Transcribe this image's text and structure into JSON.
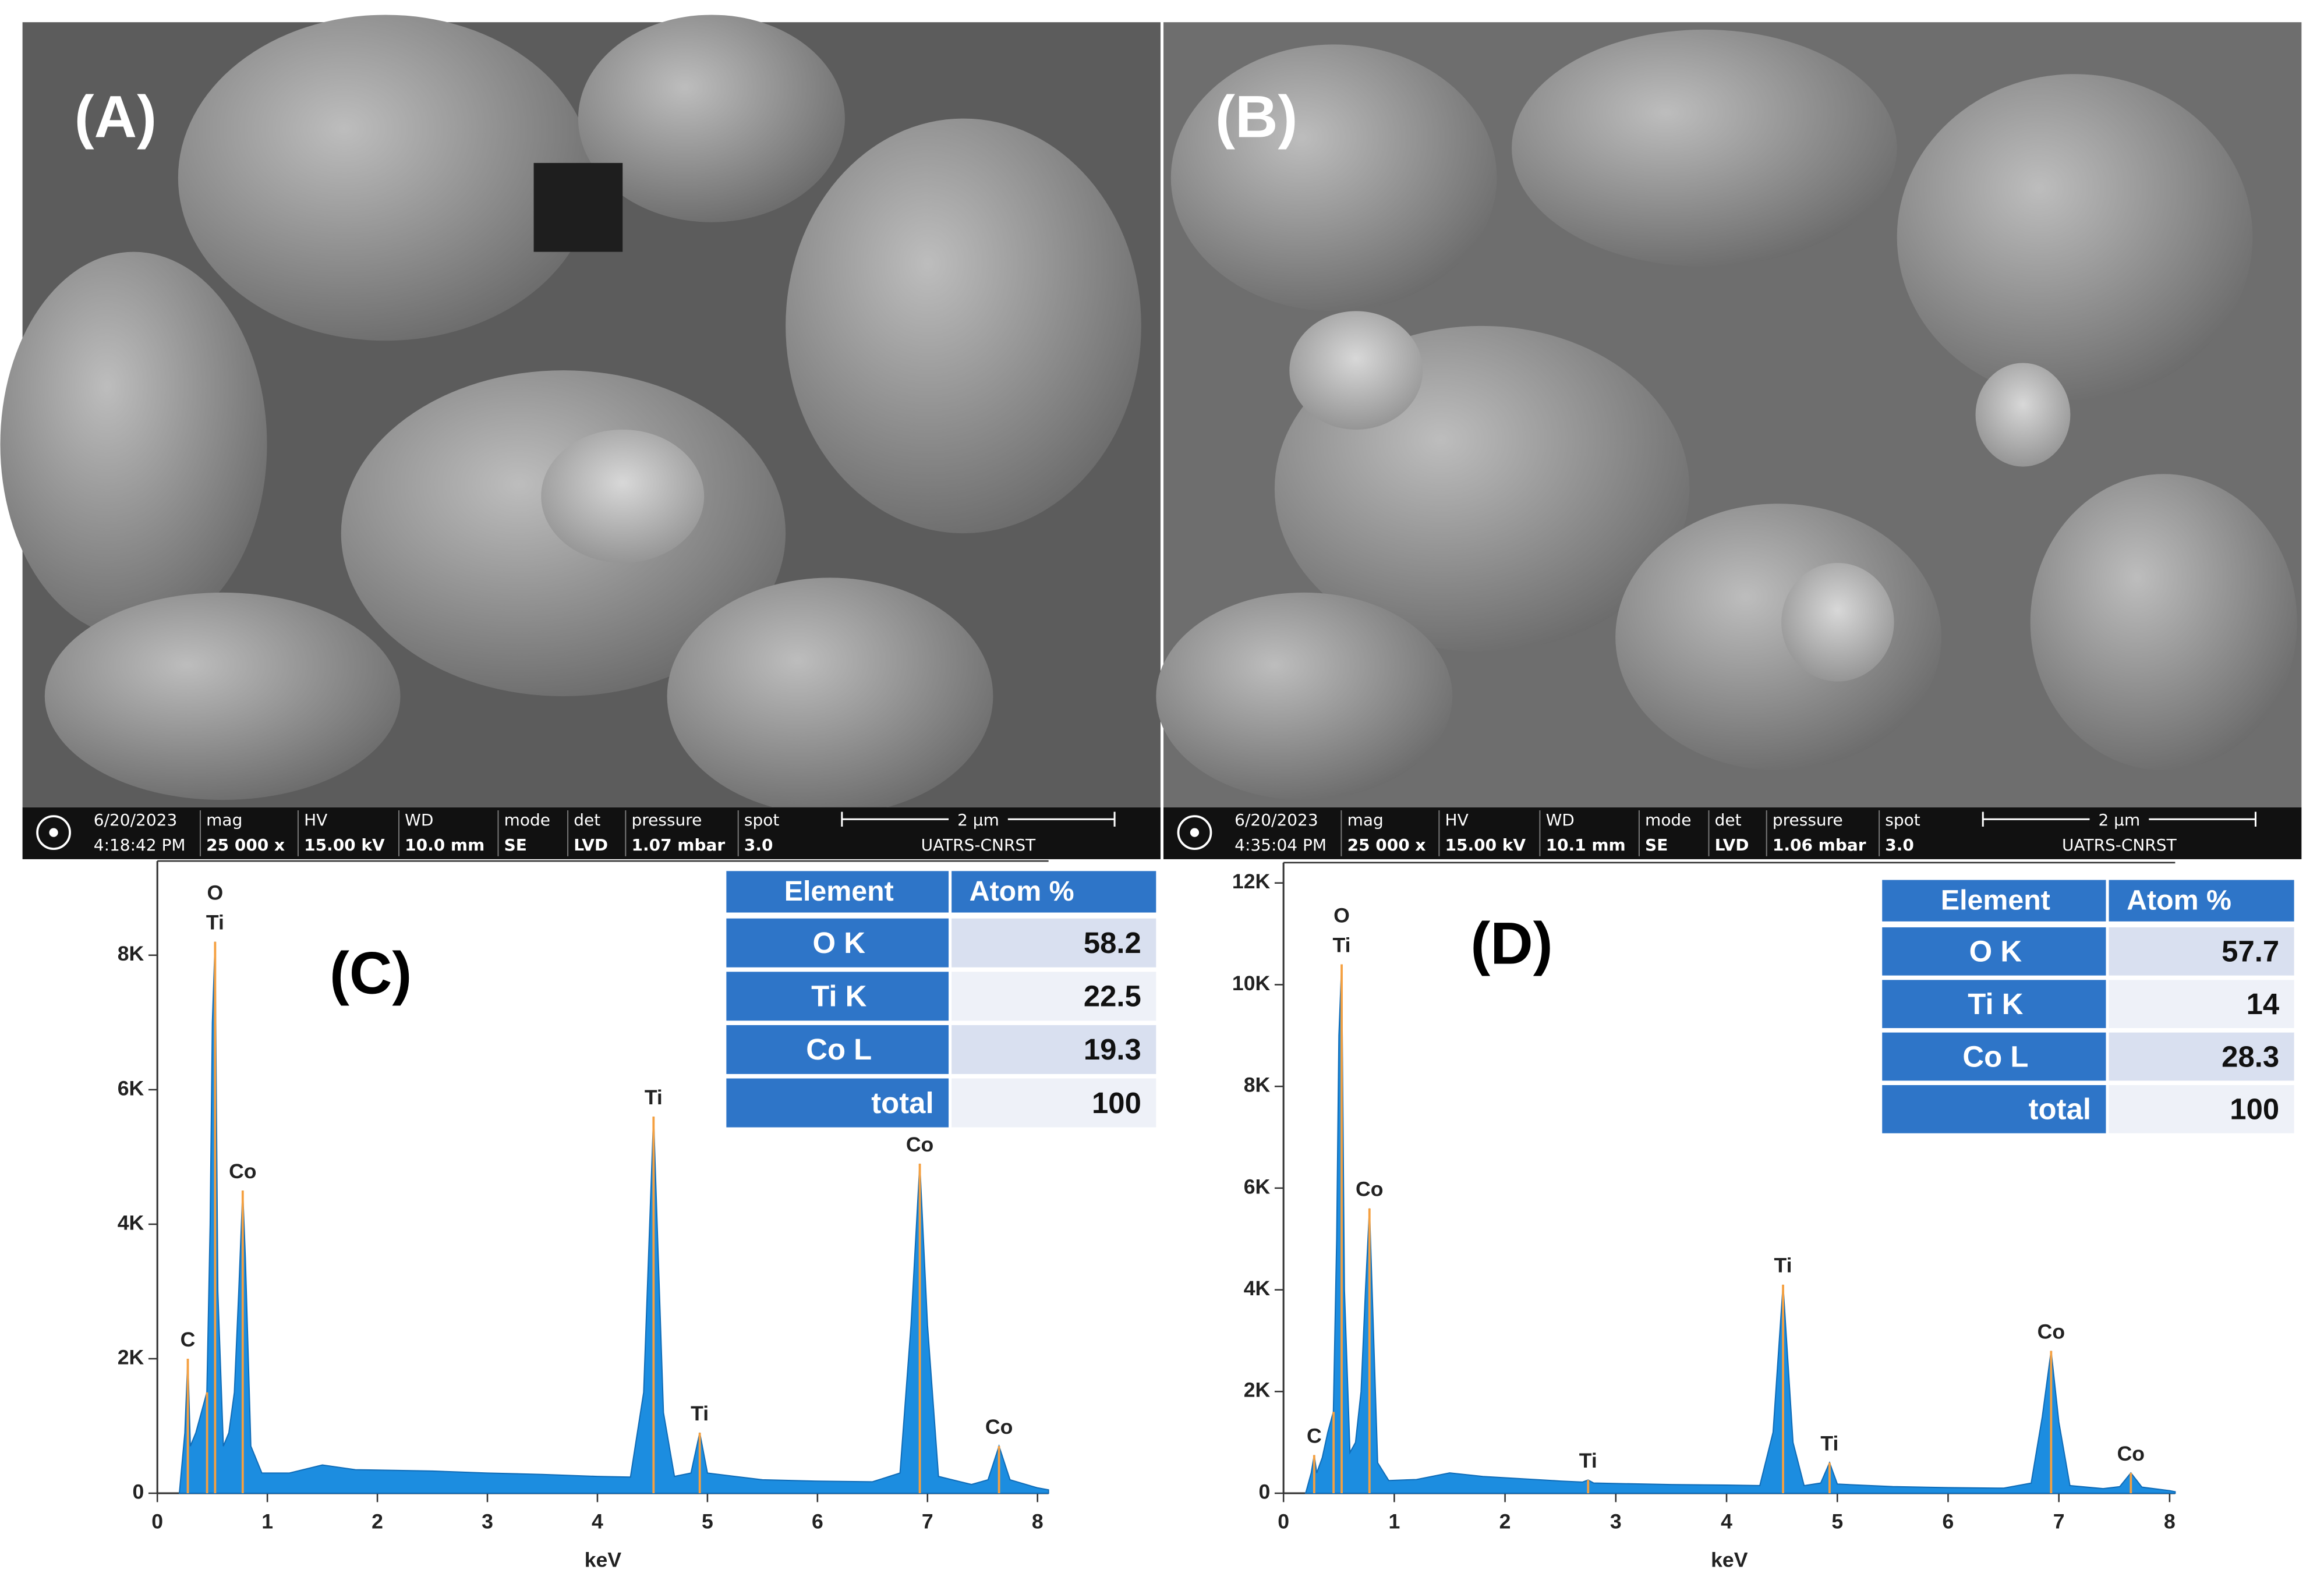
{
  "panels": [
    {
      "label": "(A)",
      "info": [
        [
          "6/20/2023",
          "4:18:42 PM"
        ],
        [
          "mag",
          "25 000 x"
        ],
        [
          "HV",
          "15.00 kV"
        ],
        [
          "WD",
          "10.0 mm"
        ],
        [
          "mode",
          "SE"
        ],
        [
          "det",
          "LVD"
        ],
        [
          "pressure",
          "1.07 mbar"
        ],
        [
          "spot",
          "3.0"
        ]
      ],
      "scale": "2 µm",
      "lab": "UATRS-CNRST"
    },
    {
      "label": "(B)",
      "info": [
        [
          "6/20/2023",
          "4:35:04 PM"
        ],
        [
          "mag",
          "25 000 x"
        ],
        [
          "HV",
          "15.00 kV"
        ],
        [
          "WD",
          "10.1 mm"
        ],
        [
          "mode",
          "SE"
        ],
        [
          "det",
          "LVD"
        ],
        [
          "pressure",
          "1.06 mbar"
        ],
        [
          "spot",
          "3.0"
        ]
      ],
      "scale": "2 µm",
      "lab": "UATRS-CNRST"
    }
  ],
  "chart_data": [
    {
      "type": "area",
      "title": "(C)",
      "xlabel": "keV",
      "color": "#1c8de0",
      "annotation_color": "#f5a040",
      "x": [
        0.2,
        0.25,
        0.277,
        0.3,
        0.35,
        0.4,
        0.45,
        0.48,
        0.5,
        0.525,
        0.55,
        0.6,
        0.65,
        0.7,
        0.74,
        0.776,
        0.8,
        0.85,
        0.95,
        1.2,
        1.5,
        1.8,
        2.5,
        3.0,
        3.5,
        4.0,
        4.3,
        4.42,
        4.51,
        4.6,
        4.7,
        4.85,
        4.93,
        5.0,
        5.5,
        6.0,
        6.5,
        6.75,
        6.85,
        6.93,
        7.0,
        7.1,
        7.4,
        7.55,
        7.65,
        7.75,
        8.0,
        8.1
      ],
      "values": [
        0,
        900,
        2000,
        700,
        900,
        1200,
        1500,
        4000,
        7000,
        8200,
        3000,
        700,
        900,
        1500,
        3000,
        4500,
        3500,
        700,
        300,
        300,
        420,
        350,
        330,
        300,
        280,
        250,
        240,
        1500,
        5600,
        1200,
        250,
        300,
        900,
        300,
        200,
        180,
        170,
        300,
        2500,
        4900,
        2500,
        250,
        130,
        200,
        700,
        200,
        80,
        50
      ],
      "xlim": [
        0,
        8.1
      ],
      "ylim": [
        0,
        9400
      ],
      "xticks": [
        0,
        1,
        2,
        3,
        4,
        5,
        6,
        7,
        8
      ],
      "yticks": [
        0,
        {
          "value": 2000,
          "label": "2K"
        },
        {
          "value": 4000,
          "label": "4K"
        },
        {
          "value": 6000,
          "label": "6K"
        },
        {
          "value": 8000,
          "label": "8K"
        }
      ],
      "annotations": [
        {
          "label": "C",
          "x": 0.277,
          "y": 2000
        },
        {
          "label": "O",
          "x": 0.525,
          "y": 8200
        },
        {
          "label": "Ti",
          "x": 0.452,
          "y": 1500
        },
        {
          "label": "Co",
          "x": 0.776,
          "y": 4500
        },
        {
          "label": "Ti",
          "x": 4.51,
          "y": 5600
        },
        {
          "label": "Ti",
          "x": 4.93,
          "y": 900
        },
        {
          "label": "Co",
          "x": 6.93,
          "y": 4900
        },
        {
          "label": "Co",
          "x": 7.65,
          "y": 700
        }
      ],
      "table": {
        "columns": [
          "Element",
          "Atom %"
        ],
        "rows": [
          [
            "O K",
            58.2
          ],
          [
            "Ti K",
            22.5
          ],
          [
            "Co L",
            19.3
          ],
          [
            "total",
            100
          ]
        ]
      }
    },
    {
      "type": "area",
      "title": "(D)",
      "xlabel": "keV",
      "color": "#1c8de0",
      "annotation_color": "#f5a040",
      "x": [
        0.2,
        0.25,
        0.277,
        0.3,
        0.35,
        0.4,
        0.45,
        0.48,
        0.5,
        0.525,
        0.55,
        0.6,
        0.65,
        0.7,
        0.74,
        0.776,
        0.8,
        0.85,
        0.95,
        1.2,
        1.5,
        1.8,
        2.5,
        2.7,
        2.75,
        2.8,
        3.5,
        4.0,
        4.3,
        4.42,
        4.51,
        4.6,
        4.7,
        4.85,
        4.93,
        5.0,
        5.5,
        6.0,
        6.5,
        6.75,
        6.85,
        6.93,
        7.0,
        7.1,
        7.4,
        7.55,
        7.65,
        7.75,
        8.0,
        8.05
      ],
      "values": [
        0,
        400,
        750,
        400,
        700,
        1200,
        1600,
        5000,
        9000,
        10400,
        4000,
        800,
        1000,
        2000,
        4000,
        5600,
        4000,
        600,
        250,
        270,
        400,
        330,
        240,
        220,
        260,
        200,
        170,
        160,
        150,
        1200,
        4100,
        1000,
        150,
        200,
        600,
        180,
        130,
        110,
        100,
        200,
        1500,
        2800,
        1400,
        150,
        90,
        130,
        400,
        120,
        50,
        30
      ],
      "xlim": [
        0,
        8.05
      ],
      "ylim": [
        0,
        12400
      ],
      "xticks": [
        0,
        1,
        2,
        3,
        4,
        5,
        6,
        7,
        8
      ],
      "yticks": [
        0,
        {
          "value": 2000,
          "label": "2K"
        },
        {
          "value": 4000,
          "label": "4K"
        },
        {
          "value": 6000,
          "label": "6K"
        },
        {
          "value": 8000,
          "label": "8K"
        },
        {
          "value": 10000,
          "label": "10K"
        },
        {
          "value": 12000,
          "label": "12K"
        }
      ],
      "annotations": [
        {
          "label": "C",
          "x": 0.277,
          "y": 750
        },
        {
          "label": "O",
          "x": 0.525,
          "y": 10400
        },
        {
          "label": "Ti",
          "x": 0.452,
          "y": 1600
        },
        {
          "label": "Co",
          "x": 0.776,
          "y": 5600
        },
        {
          "label": "Ti",
          "x": 2.75,
          "y": 260
        },
        {
          "label": "Ti",
          "x": 4.51,
          "y": 4100
        },
        {
          "label": "Ti",
          "x": 4.93,
          "y": 600
        },
        {
          "label": "Co",
          "x": 6.93,
          "y": 2800
        },
        {
          "label": "Co",
          "x": 7.65,
          "y": 400
        }
      ],
      "table": {
        "columns": [
          "Element",
          "Atom %"
        ],
        "rows": [
          [
            "O K",
            57.7
          ],
          [
            "Ti K",
            14
          ],
          [
            "Co L",
            28.3
          ],
          [
            "total",
            100
          ]
        ]
      }
    }
  ]
}
